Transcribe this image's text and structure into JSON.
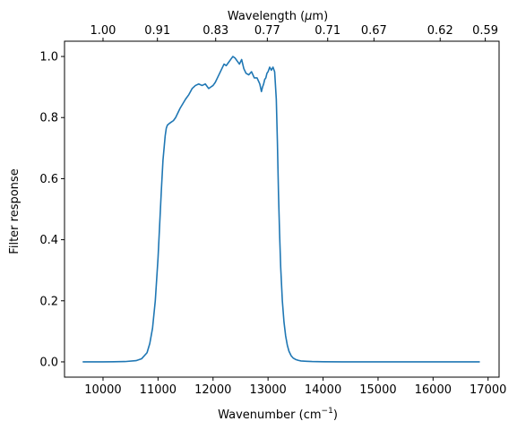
{
  "chart_data": {
    "type": "line",
    "title": "",
    "xlabel": "Wavenumber (cm",
    "xlabel_sup": "−1",
    "xlabel_end": ")",
    "x2label": "Wavelength (",
    "x2label_mu": "μ",
    "x2label_end": "m)",
    "ylabel": "Filter response",
    "xlim": [
      9300,
      17200
    ],
    "ylim": [
      -0.05,
      1.05
    ],
    "grid": false,
    "x_ticks": [
      10000,
      11000,
      12000,
      13000,
      14000,
      15000,
      16000,
      17000
    ],
    "x_tick_labels": [
      "10000",
      "11000",
      "12000",
      "13000",
      "14000",
      "15000",
      "16000",
      "17000"
    ],
    "y_ticks": [
      0.0,
      0.2,
      0.4,
      0.6,
      0.8,
      1.0
    ],
    "y_tick_labels": [
      "0.0",
      "0.2",
      "0.4",
      "0.6",
      "0.8",
      "1.0"
    ],
    "x2_ticks_um": [
      1.0,
      0.91,
      0.83,
      0.77,
      0.71,
      0.67,
      0.62,
      0.59
    ],
    "x2_tick_labels": [
      "1.00",
      "0.91",
      "0.83",
      "0.77",
      "0.71",
      "0.67",
      "0.62",
      "0.59"
    ],
    "line_color": "#1f77b4",
    "series": [
      {
        "x": [
          9630,
          10000,
          10400,
          10600,
          10700,
          10800,
          10850,
          10900,
          10950,
          11000,
          11030,
          11060,
          11090,
          11110,
          11130,
          11150,
          11170,
          11200,
          11240,
          11280,
          11320,
          11360,
          11400,
          11450,
          11500,
          11560,
          11620,
          11680,
          11740,
          11800,
          11860,
          11920,
          11960,
          12000,
          12040,
          12080,
          12120,
          12160,
          12200,
          12240,
          12280,
          12320,
          12360,
          12400,
          12440,
          12480,
          12520,
          12560,
          12600,
          12650,
          12700,
          12750,
          12800,
          12850,
          12880,
          12900,
          12920,
          12940,
          12960,
          12980,
          13000,
          13030,
          13060,
          13090,
          13120,
          13150,
          13170,
          13190,
          13210,
          13230,
          13260,
          13290,
          13320,
          13350,
          13380,
          13420,
          13460,
          13500,
          13550,
          13600,
          13700,
          13800,
          14000,
          14500,
          15000,
          16000,
          16850
        ],
        "y": [
          0.0,
          0.0,
          0.001,
          0.004,
          0.01,
          0.03,
          0.06,
          0.11,
          0.2,
          0.34,
          0.45,
          0.56,
          0.66,
          0.7,
          0.74,
          0.765,
          0.775,
          0.78,
          0.785,
          0.79,
          0.8,
          0.815,
          0.83,
          0.845,
          0.86,
          0.875,
          0.895,
          0.905,
          0.91,
          0.905,
          0.91,
          0.895,
          0.9,
          0.905,
          0.915,
          0.93,
          0.945,
          0.96,
          0.975,
          0.97,
          0.98,
          0.99,
          1.0,
          0.995,
          0.985,
          0.975,
          0.99,
          0.96,
          0.945,
          0.94,
          0.95,
          0.93,
          0.93,
          0.91,
          0.885,
          0.9,
          0.91,
          0.925,
          0.93,
          0.945,
          0.95,
          0.965,
          0.955,
          0.965,
          0.95,
          0.86,
          0.72,
          0.55,
          0.42,
          0.31,
          0.2,
          0.13,
          0.085,
          0.055,
          0.035,
          0.02,
          0.012,
          0.008,
          0.005,
          0.003,
          0.002,
          0.001,
          0.0005,
          0.0,
          0.0,
          0.0,
          0.0
        ]
      }
    ]
  }
}
